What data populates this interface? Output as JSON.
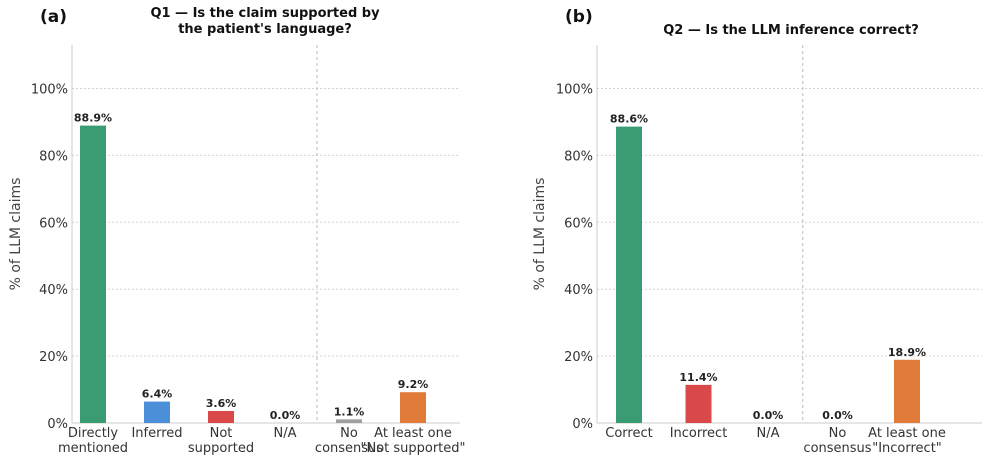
{
  "chart_data": [
    {
      "type": "bar",
      "panel_label": "(a)",
      "title": [
        "Q1 — Is the claim supported by",
        "the patient's language?"
      ],
      "ylabel": "% of LLM claims",
      "ylim": [
        0,
        113
      ],
      "yticks": [
        0,
        20,
        40,
        60,
        80,
        100
      ],
      "ytick_labels": [
        "0%",
        "20%",
        "40%",
        "60%",
        "80%",
        "100%"
      ],
      "grid": true,
      "categories": [
        [
          "Directly",
          "mentioned"
        ],
        [
          "Inferred"
        ],
        [
          "Not",
          "supported"
        ],
        [
          "N/A"
        ],
        [
          "No",
          "consensus"
        ],
        [
          "At least one",
          "\"Not supported\""
        ]
      ],
      "values": [
        88.9,
        6.4,
        3.6,
        0.0,
        1.1,
        9.2
      ],
      "value_labels": [
        "88.9%",
        "6.4%",
        "3.6%",
        "0.0%",
        "1.1%",
        "9.2%"
      ],
      "colors": [
        "#3b9b73",
        "#4a8fd8",
        "#d9494a",
        "#9e9e9e",
        "#9e9e9e",
        "#e07b39"
      ],
      "separator_after_index": 3
    },
    {
      "type": "bar",
      "panel_label": "(b)",
      "title": [
        "Q2 — Is the LLM inference correct?"
      ],
      "ylabel": "% of LLM claims",
      "ylim": [
        0,
        113
      ],
      "yticks": [
        0,
        20,
        40,
        60,
        80,
        100
      ],
      "ytick_labels": [
        "0%",
        "20%",
        "40%",
        "60%",
        "80%",
        "100%"
      ],
      "grid": true,
      "categories": [
        [
          "Correct"
        ],
        [
          "Incorrect"
        ],
        [
          "N/A"
        ],
        [
          "No",
          "consensus"
        ],
        [
          "At least one",
          "\"Incorrect\""
        ]
      ],
      "values": [
        88.6,
        11.4,
        0.0,
        0.0,
        18.9
      ],
      "value_labels": [
        "88.6%",
        "11.4%",
        "0.0%",
        "0.0%",
        "18.9%"
      ],
      "colors": [
        "#3b9b73",
        "#d9494a",
        "#9e9e9e",
        "#9e9e9e",
        "#e07b39"
      ],
      "separator_after_index": 2
    }
  ]
}
